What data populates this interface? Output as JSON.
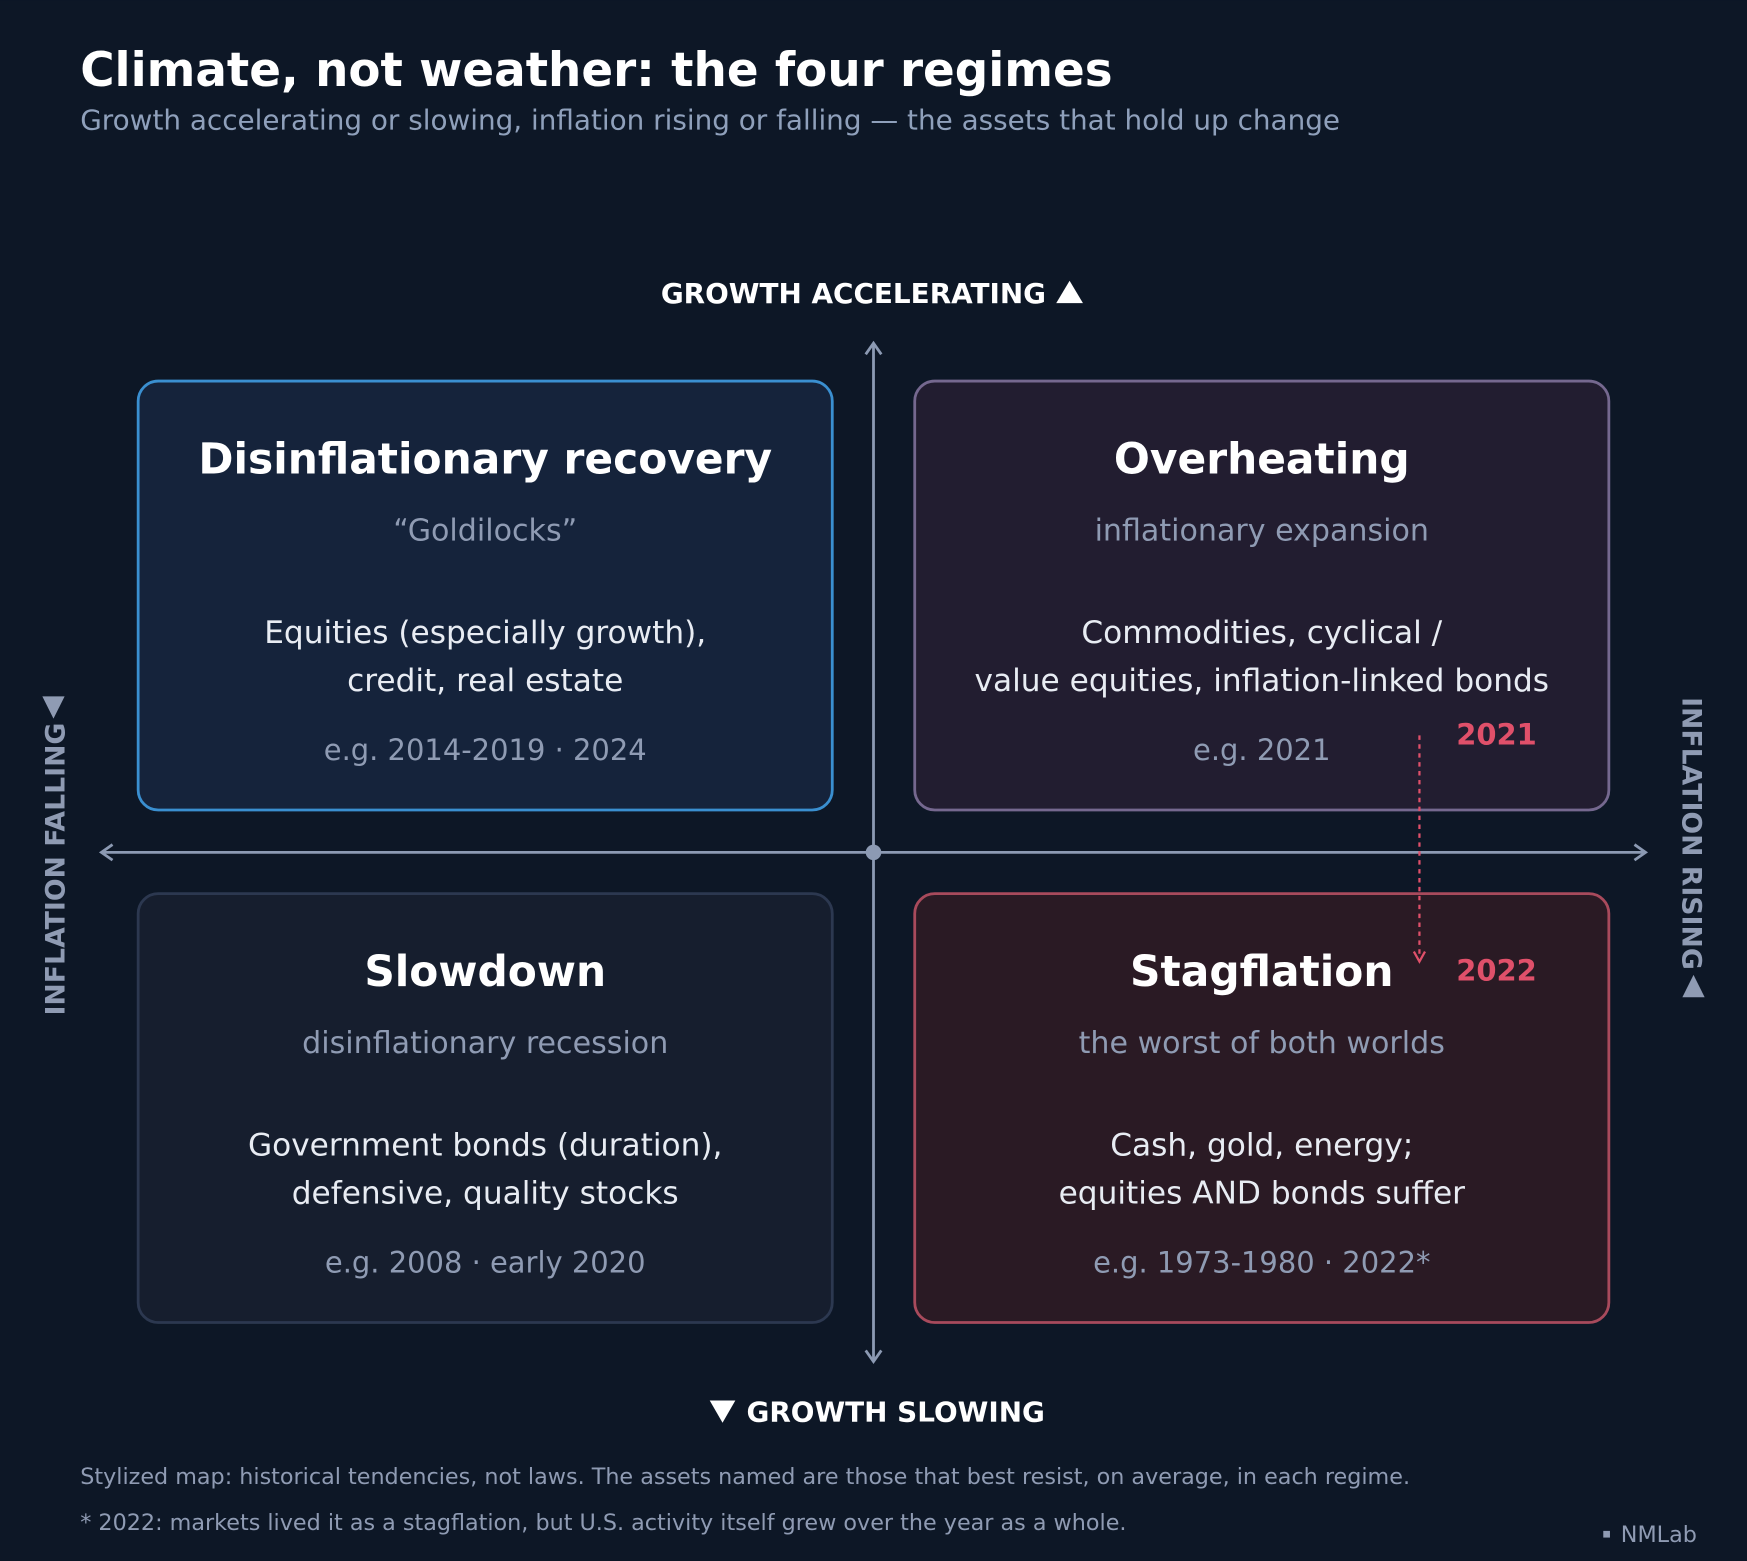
{
  "header": {
    "title": "Climate, not weather: the four regimes",
    "subtitle": "Growth accelerating or slowing, inflation rising or falling — the assets that hold up change"
  },
  "axes": {
    "top": "GROWTH ACCELERATING",
    "bottom": "GROWTH SLOWING",
    "left": "INFLATION FALLING",
    "right": "INFLATION RISING"
  },
  "quadrants": [
    {
      "title": "Disinflationary recovery",
      "subtitle": "“Goldilocks”",
      "assets": [
        "Equities (especially growth),",
        "credit, real estate"
      ],
      "examples": "e.g. 2014-2019 · 2024"
    },
    {
      "title": "Overheating",
      "subtitle": "inflationary expansion",
      "assets": [
        "Commodities, cyclical /",
        "value equities, inflation-linked bonds"
      ],
      "examples": "e.g. 2021"
    },
    {
      "title": "Slowdown",
      "subtitle": "disinflationary recession",
      "assets": [
        "Government bonds (duration),",
        "defensive, quality stocks"
      ],
      "examples": "e.g. 2008 · early 2020"
    },
    {
      "title": "Stagflation",
      "subtitle": "the worst of both worlds",
      "assets": [
        "Cash, gold, energy;",
        "equities AND bonds suffer"
      ],
      "examples": "e.g. 1973-1980 · 2022*"
    }
  ],
  "annotation": {
    "from": "2021",
    "to": "2022"
  },
  "footer": {
    "notes": [
      "Stylized map: historical tendencies, not laws. The assets named are those that best resist, on average, in each regime.",
      "* 2022: markets lived it as a stagflation, but U.S. activity itself grew over the year as a whole."
    ],
    "brand": "NMLab"
  }
}
